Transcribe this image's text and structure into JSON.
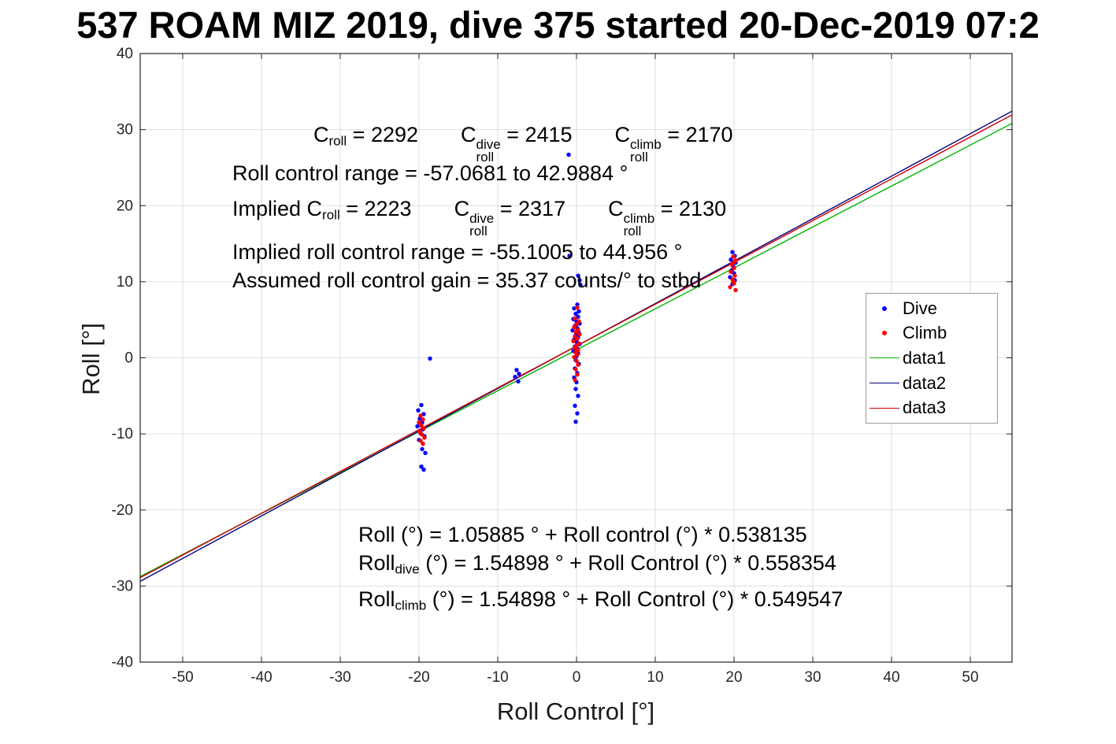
{
  "annotations": {
    "line1": {
      "c1_base": "C",
      "c1_sub": "roll",
      "c1_eq": " = 2292",
      "c2_base": "C",
      "c2_sub": "roll",
      "c2_sup": "dive",
      "c2_eq": " = 2415",
      "c3_base": "C",
      "c3_sub": "roll",
      "c3_sup": "climb",
      "c3_eq": " = 2170"
    },
    "line2": "Roll control range = -57.0681 to 42.9884 °",
    "line3": {
      "prefix": "Implied ",
      "c1_base": "C",
      "c1_sub": "roll",
      "c1_eq": " = 2223",
      "c2_base": "C",
      "c2_sub": "roll",
      "c2_sup": "dive",
      "c2_eq": " = 2317",
      "c3_base": "C",
      "c3_sub": "roll",
      "c3_sup": "climb",
      "c3_eq": " = 2130"
    },
    "line4": "Implied roll control range = -55.1005 to 44.956 °",
    "line5": "Assumed roll control gain = 35.37 counts/° to stbd",
    "eq1": "Roll (°) = 1.05885 ° + Roll control (°) * 0.538135",
    "eq2": {
      "base": "Roll",
      "sub": "dive",
      "rest": " (°) = 1.54898 ° + Roll Control (°) * 0.558354"
    },
    "eq3": {
      "base": "Roll",
      "sub": "climb",
      "rest": " (°) = 1.54898 ° + Roll Control (°) * 0.549547"
    }
  },
  "chart_data": {
    "type": "scatter",
    "title": "537 ROAM MIZ 2019, dive 375 started 20-Dec-2019 07:2",
    "xlabel": "Roll Control [°]",
    "ylabel": "Roll [°]",
    "xlim": [
      -55.4,
      55.3
    ],
    "ylim": [
      -40,
      40
    ],
    "xticks": [
      -50,
      -40,
      -30,
      -20,
      -10,
      0,
      10,
      20,
      30,
      40,
      50
    ],
    "yticks": [
      -40,
      -30,
      -20,
      -10,
      0,
      10,
      20,
      30,
      40
    ],
    "grid": true,
    "legend": {
      "position": "right-inside",
      "entries": [
        {
          "label": "Dive",
          "marker": "dot",
          "color": "#0000ff"
        },
        {
          "label": "Climb",
          "marker": "dot",
          "color": "#ff0000"
        },
        {
          "label": "data1",
          "marker": "line",
          "color": "#00b400"
        },
        {
          "label": "data2",
          "marker": "line",
          "color": "#000080"
        },
        {
          "label": "data3",
          "marker": "line",
          "color": "#cc0000"
        }
      ]
    },
    "series": [
      {
        "name": "Dive",
        "type": "scatter",
        "color": "#0000ff",
        "points": [
          [
            -19.7,
            -6.2
          ],
          [
            -20.1,
            -6.9
          ],
          [
            -19.4,
            -7.4
          ],
          [
            -19.9,
            -8.0
          ],
          [
            -19.6,
            -8.5
          ],
          [
            -20.2,
            -9.0
          ],
          [
            -19.5,
            -9.4
          ],
          [
            -19.8,
            -9.9
          ],
          [
            -19.3,
            -10.3
          ],
          [
            -20.0,
            -10.8
          ],
          [
            -19.6,
            -12.0
          ],
          [
            -19.2,
            -12.5
          ],
          [
            -19.7,
            -14.3
          ],
          [
            -19.4,
            -14.7
          ],
          [
            -18.6,
            -0.1
          ],
          [
            -7.6,
            -1.6
          ],
          [
            -7.3,
            -2.1
          ],
          [
            -7.8,
            -2.5
          ],
          [
            -7.4,
            -3.1
          ],
          [
            -1.0,
            26.7
          ],
          [
            -0.9,
            13.4
          ],
          [
            0.2,
            10.8
          ],
          [
            0.4,
            10.2
          ],
          [
            0.5,
            9.6
          ],
          [
            0.1,
            7.0
          ],
          [
            -0.3,
            6.5
          ],
          [
            0.3,
            6.1
          ],
          [
            -0.1,
            5.8
          ],
          [
            0.2,
            5.4
          ],
          [
            -0.4,
            5.1
          ],
          [
            0.0,
            4.8
          ],
          [
            0.4,
            4.5
          ],
          [
            -0.2,
            4.2
          ],
          [
            0.1,
            3.9
          ],
          [
            -0.5,
            3.6
          ],
          [
            0.3,
            3.3
          ],
          [
            -0.1,
            3.0
          ],
          [
            0.2,
            2.7
          ],
          [
            -0.3,
            2.4
          ],
          [
            0.0,
            2.1
          ],
          [
            0.4,
            1.8
          ],
          [
            -0.2,
            1.5
          ],
          [
            0.1,
            1.2
          ],
          [
            -0.4,
            0.9
          ],
          [
            0.2,
            0.6
          ],
          [
            0.0,
            0.2
          ],
          [
            -0.1,
            -0.3
          ],
          [
            0.3,
            -0.8
          ],
          [
            -0.2,
            -1.4
          ],
          [
            0.1,
            -2.0
          ],
          [
            -0.3,
            -2.6
          ],
          [
            0.0,
            -3.2
          ],
          [
            -0.1,
            -4.1
          ],
          [
            0.2,
            -5.0
          ],
          [
            -0.2,
            -6.3
          ],
          [
            0.1,
            -7.3
          ],
          [
            -0.1,
            -8.4
          ],
          [
            19.8,
            13.9
          ],
          [
            20.1,
            13.4
          ],
          [
            19.6,
            12.9
          ],
          [
            20.2,
            12.5
          ],
          [
            19.9,
            12.0
          ],
          [
            19.7,
            11.5
          ],
          [
            20.0,
            11.1
          ],
          [
            19.5,
            10.6
          ],
          [
            20.1,
            10.2
          ],
          [
            19.8,
            9.7
          ]
        ]
      },
      {
        "name": "Climb",
        "type": "scatter",
        "color": "#ff0000",
        "points": [
          [
            -19.8,
            -7.6
          ],
          [
            -19.5,
            -8.1
          ],
          [
            -20.0,
            -8.5
          ],
          [
            -19.7,
            -8.9
          ],
          [
            -19.4,
            -9.3
          ],
          [
            -19.9,
            -9.7
          ],
          [
            -19.6,
            -10.1
          ],
          [
            -19.3,
            -10.5
          ],
          [
            -19.8,
            -10.9
          ],
          [
            -19.5,
            -11.3
          ],
          [
            0.1,
            6.6
          ],
          [
            -0.2,
            5.2
          ],
          [
            0.3,
            4.8
          ],
          [
            0.0,
            4.4
          ],
          [
            -0.3,
            4.0
          ],
          [
            0.2,
            3.7
          ],
          [
            -0.1,
            3.4
          ],
          [
            0.4,
            3.1
          ],
          [
            -0.2,
            2.8
          ],
          [
            0.1,
            2.5
          ],
          [
            -0.4,
            2.2
          ],
          [
            0.3,
            1.9
          ],
          [
            0.0,
            1.6
          ],
          [
            -0.2,
            1.3
          ],
          [
            0.2,
            1.0
          ],
          [
            -0.1,
            0.7
          ],
          [
            0.1,
            0.4
          ],
          [
            -0.3,
            0.1
          ],
          [
            0.0,
            -0.4
          ],
          [
            0.2,
            -0.9
          ],
          [
            -0.1,
            -1.5
          ],
          [
            0.1,
            -2.2
          ],
          [
            -0.2,
            -2.9
          ],
          [
            19.9,
            13.3
          ],
          [
            20.2,
            12.8
          ],
          [
            19.7,
            12.3
          ],
          [
            20.0,
            11.8
          ],
          [
            19.6,
            11.3
          ],
          [
            20.1,
            10.8
          ],
          [
            19.8,
            10.3
          ],
          [
            20.0,
            9.8
          ],
          [
            19.5,
            9.3
          ],
          [
            20.2,
            8.9
          ],
          [
            19.9,
            10.0
          ],
          [
            20.0,
            12.6
          ]
        ]
      },
      {
        "name": "data1",
        "type": "line",
        "color": "#00b400",
        "intercept": 1.05885,
        "slope": 0.538135
      },
      {
        "name": "data2",
        "type": "line",
        "color": "#000080",
        "intercept": 1.54898,
        "slope": 0.558354
      },
      {
        "name": "data3",
        "type": "line",
        "color": "#cc0000",
        "intercept": 1.54898,
        "slope": 0.549547
      }
    ]
  }
}
